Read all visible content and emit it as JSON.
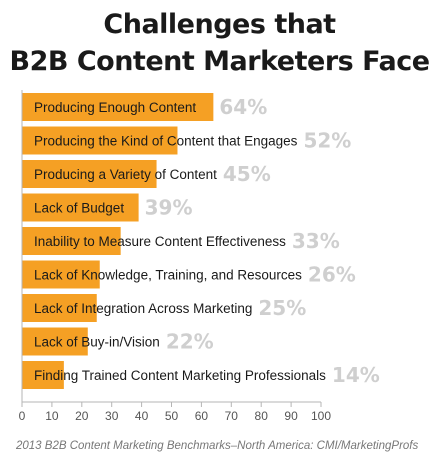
{
  "title_lines": [
    "Challenges that",
    "B2B Content Marketers Face"
  ],
  "source": "2013 B2B Content Marketing Benchmarks–North America: CMI/MarketingProfs",
  "colors": {
    "bar": "#f5a024",
    "pct": "#cfcfcf",
    "axis": "#b5b5b5",
    "label": "#1a1a1a"
  },
  "chart_data": {
    "type": "bar",
    "orientation": "horizontal",
    "title": "Challenges that B2B Content Marketers Face",
    "categories": [
      "Producing Enough Content",
      "Producing the Kind of Content that Engages",
      "Producing a Variety of Content",
      "Lack of Budget",
      "Inability to Measure Content Effectiveness",
      "Lack of Knowledge, Training, and Resources",
      "Lack of Integration Across Marketing",
      "Lack of Buy-in/Vision",
      "Finding Trained Content Marketing Professionals"
    ],
    "values": [
      64,
      52,
      45,
      39,
      33,
      26,
      25,
      22,
      14
    ],
    "value_labels": [
      "64%",
      "52%",
      "45%",
      "39%",
      "33%",
      "26%",
      "25%",
      "22%",
      "14%"
    ],
    "xlim": [
      0,
      100
    ],
    "xticks": [
      0,
      10,
      20,
      30,
      40,
      50,
      60,
      70,
      80,
      90,
      100
    ],
    "grid": false
  }
}
